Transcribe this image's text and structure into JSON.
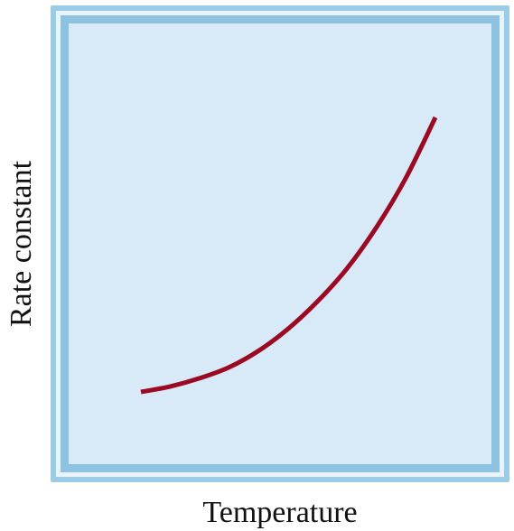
{
  "chart_data": {
    "type": "line",
    "title": "",
    "xlabel": "Temperature",
    "ylabel": "Rate constant",
    "xlim": [
      0,
      1
    ],
    "ylim": [
      0,
      1
    ],
    "grid": false,
    "legend": "none",
    "tick_labels": false,
    "series": [
      {
        "color": "#9b0a22",
        "x": [
          0.0,
          0.1,
          0.2,
          0.3,
          0.4,
          0.5,
          0.6,
          0.7,
          0.8,
          0.9,
          1.0
        ],
        "y": [
          0.0,
          0.02,
          0.05,
          0.09,
          0.15,
          0.23,
          0.33,
          0.45,
          0.6,
          0.78,
          1.0
        ]
      }
    ]
  },
  "colors": {
    "panel_fill": "#d8e9f7",
    "frame_outer": "#8ec3e2",
    "frame_light": "#d6ecf8",
    "frame_inner": "#7cb6db",
    "curve": "#9b0a22"
  }
}
